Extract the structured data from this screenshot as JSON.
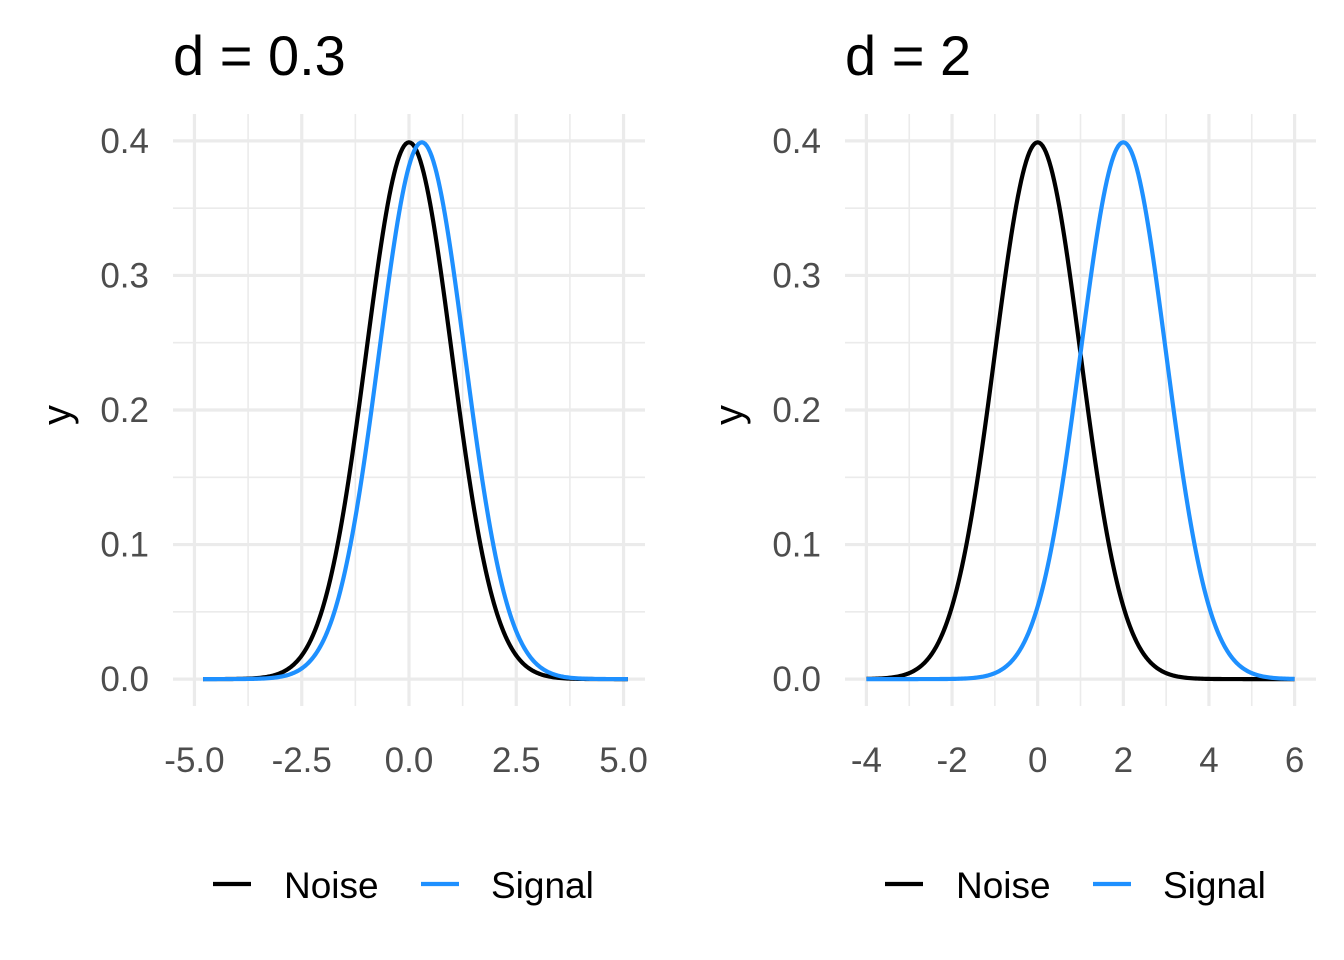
{
  "chart_data": [
    {
      "type": "line",
      "title": "d = 0.3",
      "xlabel": "",
      "ylabel": "y",
      "xlim": [
        -5,
        5
      ],
      "ylim": [
        0,
        0.4
      ],
      "x_ticks": [
        -5.0,
        -2.5,
        0.0,
        2.5,
        5.0
      ],
      "x_tick_labels": [
        "-5.0",
        "-2.5",
        "0.0",
        "2.5",
        "5.0"
      ],
      "y_ticks": [
        0.0,
        0.1,
        0.2,
        0.3,
        0.4
      ],
      "y_tick_labels": [
        "0.0",
        "0.1",
        "0.2",
        "0.3",
        "0.4"
      ],
      "grid": true,
      "legend_position": "bottom",
      "series": [
        {
          "name": "Noise",
          "color": "#000000",
          "mean": 0,
          "sd": 1,
          "x": [
            -4.8,
            -3,
            -2,
            -1.5,
            -1,
            -0.5,
            0,
            0.5,
            1,
            1.5,
            2,
            3,
            5.1
          ],
          "y": [
            0.0,
            0.004,
            0.054,
            0.13,
            0.242,
            0.352,
            0.399,
            0.352,
            0.242,
            0.13,
            0.054,
            0.004,
            0.0
          ]
        },
        {
          "name": "Signal",
          "color": "#1e90ff",
          "mean": 0.3,
          "sd": 1,
          "x": [
            -4.8,
            -2.7,
            -1.7,
            -1.2,
            -0.7,
            -0.2,
            0.3,
            0.8,
            1.3,
            1.8,
            2.3,
            3.3,
            5.1
          ],
          "y": [
            0.0,
            0.004,
            0.054,
            0.13,
            0.242,
            0.352,
            0.399,
            0.352,
            0.242,
            0.13,
            0.054,
            0.004,
            0.0
          ]
        }
      ],
      "legend": [
        "Noise",
        "Signal"
      ]
    },
    {
      "type": "line",
      "title": "d = 2",
      "xlabel": "",
      "ylabel": "y",
      "xlim": [
        -4,
        6
      ],
      "ylim": [
        0,
        0.4
      ],
      "x_ticks": [
        -4,
        -2,
        0,
        2,
        4,
        6
      ],
      "x_tick_labels": [
        "-4",
        "-2",
        "0",
        "2",
        "4",
        "6"
      ],
      "y_ticks": [
        0.0,
        0.1,
        0.2,
        0.3,
        0.4
      ],
      "y_tick_labels": [
        "0.0",
        "0.1",
        "0.2",
        "0.3",
        "0.4"
      ],
      "grid": true,
      "legend_position": "bottom",
      "series": [
        {
          "name": "Noise",
          "color": "#000000",
          "mean": 0,
          "sd": 1,
          "x": [
            -4,
            -3,
            -2,
            -1,
            0,
            1,
            2,
            3,
            4,
            6
          ],
          "y": [
            0.0,
            0.004,
            0.054,
            0.242,
            0.399,
            0.242,
            0.054,
            0.004,
            0.0,
            0.0
          ]
        },
        {
          "name": "Signal",
          "color": "#1e90ff",
          "mean": 2,
          "sd": 1,
          "x": [
            -4,
            -1,
            0,
            1,
            2,
            3,
            4,
            5,
            6
          ],
          "y": [
            0.0,
            0.004,
            0.054,
            0.242,
            0.399,
            0.242,
            0.054,
            0.004,
            0.0
          ]
        }
      ],
      "legend": [
        "Noise",
        "Signal"
      ]
    }
  ]
}
